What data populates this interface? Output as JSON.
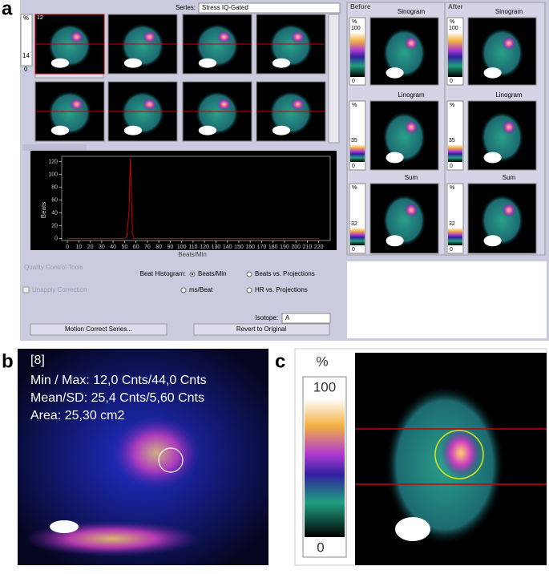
{
  "panel_labels": [
    "a",
    "b",
    "c"
  ],
  "series_label": "Series:",
  "series_value": "Stress IQ-Gated",
  "frame_number": "12",
  "left_scale": {
    "unit": "%",
    "top": "14",
    "bottom": "0"
  },
  "before": {
    "title": "Before",
    "views": [
      {
        "name": "Sinogram",
        "unit": "%",
        "top": "100",
        "bottom": "0"
      },
      {
        "name": "Linogram",
        "unit": "%",
        "top": "35",
        "bottom": "0"
      },
      {
        "name": "Sum",
        "unit": "%",
        "top": "32",
        "bottom": "0"
      }
    ]
  },
  "after": {
    "title": "After",
    "views": [
      {
        "name": "Sinogram",
        "unit": "%",
        "top": "100",
        "bottom": "0"
      },
      {
        "name": "Linogram",
        "unit": "%",
        "top": "35",
        "bottom": "0"
      },
      {
        "name": "Sum",
        "unit": "%",
        "top": "32",
        "bottom": "0"
      }
    ]
  },
  "histogram": {
    "type": "line",
    "xlabel": "Beats/Min",
    "ylabel": "Beats",
    "color": "#cc0000",
    "x": [
      0,
      50,
      52,
      54,
      55,
      56,
      57,
      58,
      60,
      220
    ],
    "values": [
      0,
      0,
      3,
      45,
      125,
      70,
      8,
      0,
      0,
      0
    ],
    "xlim": [
      -5,
      230
    ],
    "ylim": [
      -3,
      128
    ],
    "xticks": [
      0,
      10,
      20,
      30,
      40,
      50,
      60,
      70,
      80,
      90,
      100,
      110,
      120,
      130,
      140,
      150,
      160,
      170,
      180,
      190,
      200,
      210,
      220
    ],
    "yticks": [
      0,
      20,
      40,
      60,
      80,
      100,
      120
    ]
  },
  "quality_control": {
    "title": "Quality Control Tools",
    "beat_histogram_label": "Beat Histogram:",
    "options": [
      "Beats/Min",
      "Beats vs. Projections",
      "ms/Beat",
      "HR vs. Projections"
    ],
    "unapply": "Unapply Correction",
    "isotope_label": "Isotope:",
    "isotope_value": "A",
    "buttons": [
      "Motion Correct Series...",
      "Revert to Original"
    ]
  },
  "panel_b": {
    "lines": [
      "[8]",
      "Min / Max: 12,0 Cnts/44,0 Cnts",
      "Mean/SD: 25,4 Cnts/5,60 Cnts",
      "Area: 25,30 cm2"
    ]
  },
  "panel_c": {
    "unit": "%",
    "top": "100",
    "bottom": "0"
  }
}
